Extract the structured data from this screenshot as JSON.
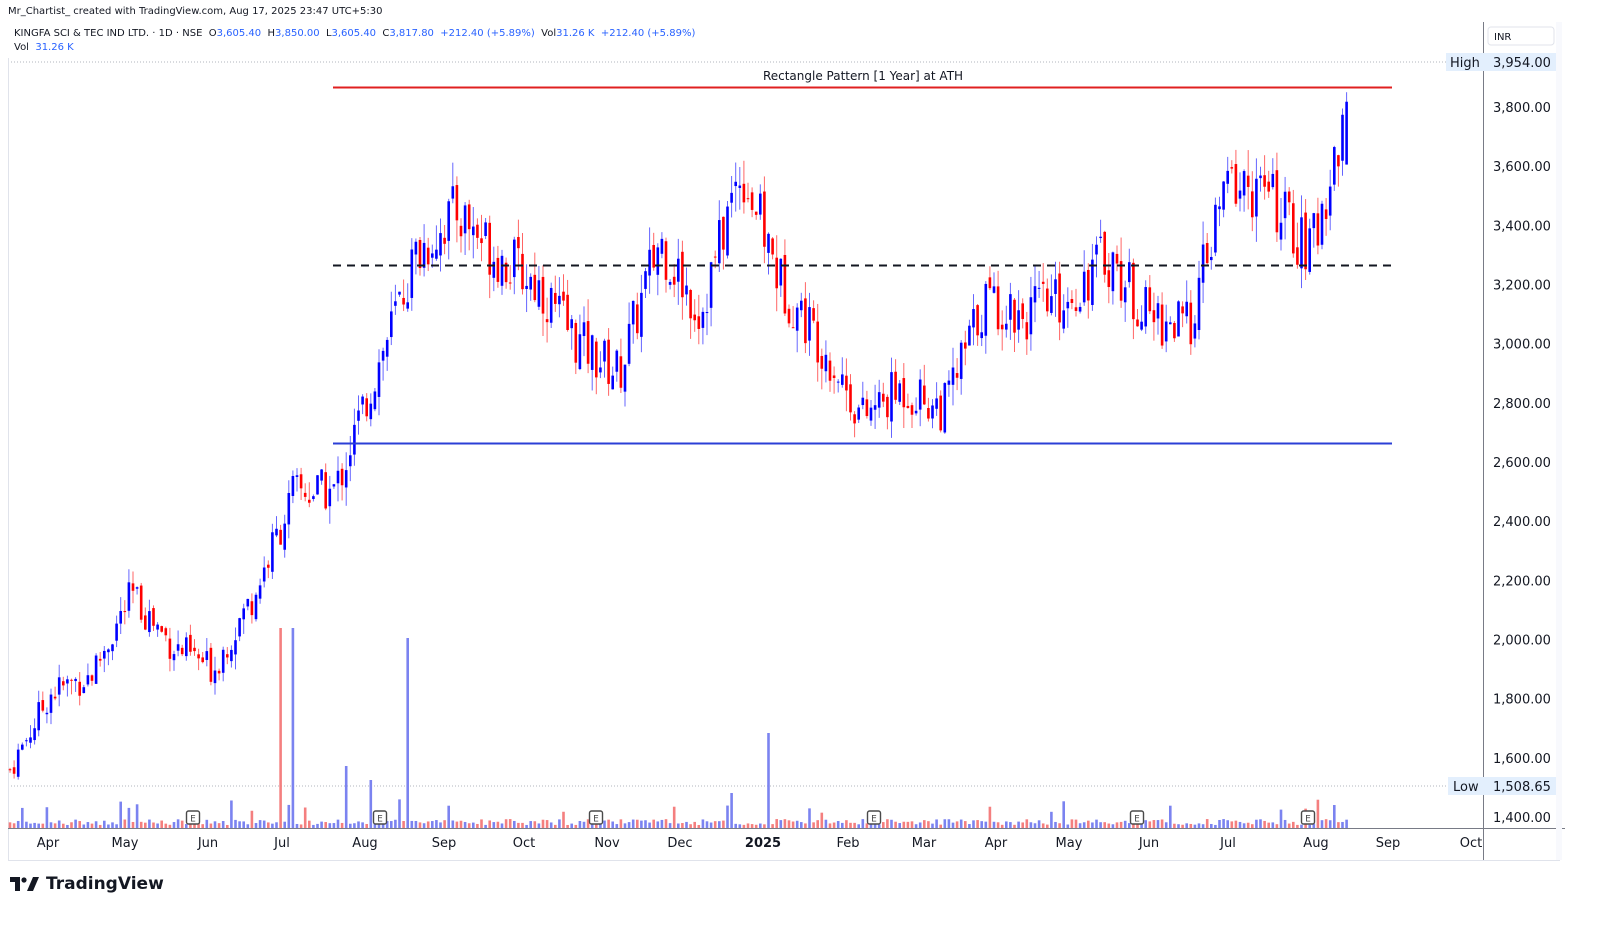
{
  "credit": "Mr_Chartist_ created with TradingView.com, Aug 17, 2025 23:47 UTC+5:30",
  "legend": {
    "symbol": "KINGFA SCI & TEC IND LTD. · 1D · NSE",
    "open_label": "O",
    "open": "3,605.40",
    "high_label": "H",
    "high": "3,850.00",
    "low_label": "L",
    "low": "3,605.40",
    "close_label": "C",
    "close": "3,817.80",
    "change": "+212.40 (+5.89%)",
    "vol_label": "Vol",
    "vol": "31.26 K",
    "change2": "+212.40 (+5.89%)",
    "vol_row_label": "Vol",
    "vol_row_value": "31.26 K"
  },
  "price_axis": {
    "currency": "INR",
    "high_marker_label": "High",
    "high_marker_value": "3,954.00",
    "low_marker_label": "Low",
    "low_marker_value": "1,508.65"
  },
  "branding": {
    "logo_text": "TradingView"
  },
  "colors": {
    "up": "#0000ff",
    "down": "#ff0000",
    "vol_up": "#7b83f0",
    "vol_down": "#f47f7f",
    "resistance": "#e02020",
    "support": "#2b3fd6",
    "midline": "#131722"
  },
  "chart_data": {
    "type": "candlestick",
    "title": "Rectangle Pattern [1 Year] at ATH",
    "symbol": "KINGFA SCI & TEC IND LTD.",
    "exchange": "NSE",
    "interval": "1D",
    "ylabel": "INR",
    "ylim": [
      1370,
      4000
    ],
    "y_ticks": [
      1400,
      1600,
      1800,
      2000,
      2200,
      2400,
      2600,
      2800,
      3000,
      3200,
      3400,
      3600,
      3800
    ],
    "x_ticks": [
      "Apr",
      "May",
      "Jun",
      "Jul",
      "Aug",
      "Sep",
      "Oct",
      "Nov",
      "Dec",
      "2025",
      "Feb",
      "Mar",
      "Apr",
      "May",
      "Jun",
      "Jul",
      "Aug",
      "Sep",
      "Oct"
    ],
    "grid": false,
    "annotations": [
      {
        "type": "hline",
        "label": "Rectangle Pattern [1 Year] at ATH",
        "price": 3867,
        "color": "#e02020",
        "style": "solid"
      },
      {
        "type": "hline",
        "label": "midline",
        "price": 3266,
        "color": "#131722",
        "style": "dashed"
      },
      {
        "type": "hline",
        "label": "support",
        "price": 2664,
        "color": "#2b3fd6",
        "style": "solid"
      },
      {
        "type": "marker",
        "label": "High",
        "price": 3954.0
      },
      {
        "type": "marker",
        "label": "Low",
        "price": 1508.65
      },
      {
        "type": "earnings",
        "label": "E",
        "dates": [
          "Jun 2024",
          "Aug 2024",
          "Nov 2024",
          "Feb 2025",
          "May 2025",
          "Aug 2025"
        ]
      }
    ],
    "last_bar": {
      "open": 3605.4,
      "high": 3850.0,
      "low": 3605.4,
      "close": 3817.8,
      "change": 212.4,
      "change_pct": 5.89,
      "volume": "31.26K"
    },
    "approx_path": {
      "x": [
        "Apr-24",
        "mid-Apr-24",
        "May-24",
        "mid-May-24",
        "Jun-24",
        "mid-Jun-24",
        "Jul-24",
        "mid-Jul-24",
        "Aug-24",
        "mid-Aug-24",
        "Sep-24",
        "mid-Sep-24",
        "Oct-24",
        "mid-Oct-24",
        "Nov-24",
        "mid-Nov-24",
        "Dec-24",
        "mid-Dec-24",
        "Jan-25",
        "mid-Jan-25",
        "Feb-25",
        "mid-Feb-25",
        "Mar-25",
        "mid-Mar-25",
        "Apr-25",
        "mid-Apr-25",
        "May-25",
        "mid-May-25",
        "Jun-25",
        "mid-Jun-25",
        "Jul-25",
        "mid-Jul-25",
        "Aug-25",
        "mid-Aug-25"
      ],
      "close": [
        1560,
        1820,
        1880,
        2150,
        1980,
        1900,
        2150,
        2500,
        2500,
        2900,
        3300,
        3450,
        3300,
        3200,
        3000,
        2900,
        3350,
        3100,
        3600,
        3200,
        3000,
        2750,
        2850,
        2780,
        3150,
        3100,
        3150,
        3300,
        3100,
        3050,
        3550,
        3500,
        3300,
        3818
      ]
    },
    "volume_spikes": [
      {
        "x": "early Jul-24",
        "value": "large"
      },
      {
        "x": "mid-Aug-24",
        "value": "large"
      },
      {
        "x": "Jan-25",
        "value": "large"
      }
    ]
  }
}
